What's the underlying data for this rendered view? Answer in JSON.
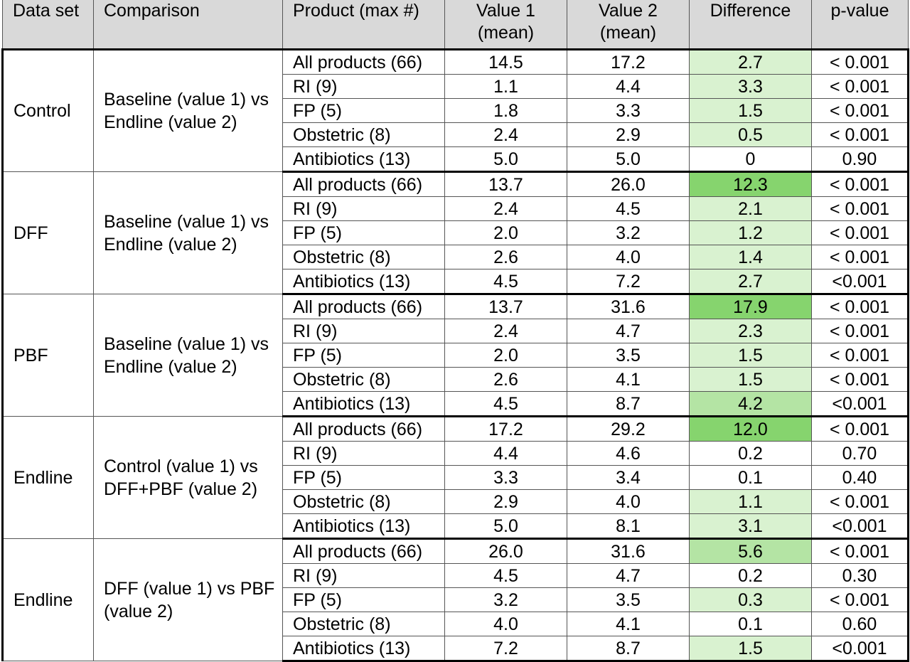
{
  "table": {
    "headers": {
      "dataset": "Data set",
      "comparison": "Comparison",
      "product": "Product (max #)",
      "value1": "Value 1 (mean)",
      "value2": "Value 2 (mean)",
      "difference": "Difference",
      "pvalue": "p-value"
    },
    "highlight_colors": {
      "none": "#ffffff",
      "light": "#d9f2d0",
      "medium": "#b4e4a4",
      "strong": "#86d46e"
    },
    "groups": [
      {
        "dataset": "Control",
        "comparison": "Baseline (value 1) vs Endline (value 2)",
        "rows": [
          {
            "product": "All products (66)",
            "value1": "14.5",
            "value2": "17.2",
            "difference": "2.7",
            "pvalue": "< 0.001",
            "highlight": "light"
          },
          {
            "product": "RI (9)",
            "value1": "1.1",
            "value2": "4.4",
            "difference": "3.3",
            "pvalue": "< 0.001",
            "highlight": "light"
          },
          {
            "product": "FP (5)",
            "value1": "1.8",
            "value2": "3.3",
            "difference": "1.5",
            "pvalue": "< 0.001",
            "highlight": "light"
          },
          {
            "product": "Obstetric (8)",
            "value1": "2.4",
            "value2": "2.9",
            "difference": "0.5",
            "pvalue": "< 0.001",
            "highlight": "light"
          },
          {
            "product": "Antibiotics (13)",
            "value1": "5.0",
            "value2": "5.0",
            "difference": "0",
            "pvalue": "0.90",
            "highlight": "none"
          }
        ]
      },
      {
        "dataset": "DFF",
        "comparison": "Baseline (value 1) vs Endline (value 2)",
        "rows": [
          {
            "product": "All products (66)",
            "value1": "13.7",
            "value2": "26.0",
            "difference": "12.3",
            "pvalue": "< 0.001",
            "highlight": "strong"
          },
          {
            "product": "RI (9)",
            "value1": "2.4",
            "value2": "4.5",
            "difference": "2.1",
            "pvalue": "< 0.001",
            "highlight": "light"
          },
          {
            "product": "FP (5)",
            "value1": "2.0",
            "value2": "3.2",
            "difference": "1.2",
            "pvalue": "< 0.001",
            "highlight": "light"
          },
          {
            "product": "Obstetric (8)",
            "value1": "2.6",
            "value2": "4.0",
            "difference": "1.4",
            "pvalue": "< 0.001",
            "highlight": "light"
          },
          {
            "product": "Antibiotics (13)",
            "value1": "4.5",
            "value2": "7.2",
            "difference": "2.7",
            "pvalue": "<0.001",
            "highlight": "light"
          }
        ]
      },
      {
        "dataset": "PBF",
        "comparison": "Baseline (value 1) vs Endline (value 2)",
        "rows": [
          {
            "product": "All products (66)",
            "value1": "13.7",
            "value2": "31.6",
            "difference": "17.9",
            "pvalue": "< 0.001",
            "highlight": "strong"
          },
          {
            "product": "RI (9)",
            "value1": "2.4",
            "value2": "4.7",
            "difference": "2.3",
            "pvalue": "< 0.001",
            "highlight": "light"
          },
          {
            "product": "FP (5)",
            "value1": "2.0",
            "value2": "3.5",
            "difference": "1.5",
            "pvalue": "< 0.001",
            "highlight": "light"
          },
          {
            "product": "Obstetric (8)",
            "value1": "2.6",
            "value2": "4.1",
            "difference": "1.5",
            "pvalue": "< 0.001",
            "highlight": "light"
          },
          {
            "product": "Antibiotics (13)",
            "value1": "4.5",
            "value2": "8.7",
            "difference": "4.2",
            "pvalue": "<0.001",
            "highlight": "medium"
          }
        ]
      },
      {
        "dataset": "Endline",
        "comparison": "Control (value 1) vs DFF+PBF (value 2)",
        "rows": [
          {
            "product": "All products (66)",
            "value1": "17.2",
            "value2": "29.2",
            "difference": "12.0",
            "pvalue": "< 0.001",
            "highlight": "strong"
          },
          {
            "product": "RI (9)",
            "value1": "4.4",
            "value2": "4.6",
            "difference": "0.2",
            "pvalue": "0.70",
            "highlight": "none"
          },
          {
            "product": "FP (5)",
            "value1": "3.3",
            "value2": "3.4",
            "difference": "0.1",
            "pvalue": "0.40",
            "highlight": "none"
          },
          {
            "product": "Obstetric (8)",
            "value1": "2.9",
            "value2": "4.0",
            "difference": "1.1",
            "pvalue": "< 0.001",
            "highlight": "light"
          },
          {
            "product": "Antibiotics (13)",
            "value1": "5.0",
            "value2": "8.1",
            "difference": "3.1",
            "pvalue": "<0.001",
            "highlight": "light"
          }
        ]
      },
      {
        "dataset": "Endline",
        "comparison": "DFF (value 1) vs PBF (value 2)",
        "rows": [
          {
            "product": "All products (66)",
            "value1": "26.0",
            "value2": "31.6",
            "difference": "5.6",
            "pvalue": "< 0.001",
            "highlight": "medium"
          },
          {
            "product": "RI (9)",
            "value1": "4.5",
            "value2": "4.7",
            "difference": "0.2",
            "pvalue": "0.30",
            "highlight": "none"
          },
          {
            "product": "FP (5)",
            "value1": "3.2",
            "value2": "3.5",
            "difference": "0.3",
            "pvalue": "< 0.001",
            "highlight": "light"
          },
          {
            "product": "Obstetric (8)",
            "value1": "4.0",
            "value2": "4.1",
            "difference": "0.1",
            "pvalue": "0.60",
            "highlight": "none"
          },
          {
            "product": "Antibiotics (13)",
            "value1": "7.2",
            "value2": "8.7",
            "difference": "1.5",
            "pvalue": "<0.001",
            "highlight": "light"
          }
        ]
      }
    ]
  }
}
